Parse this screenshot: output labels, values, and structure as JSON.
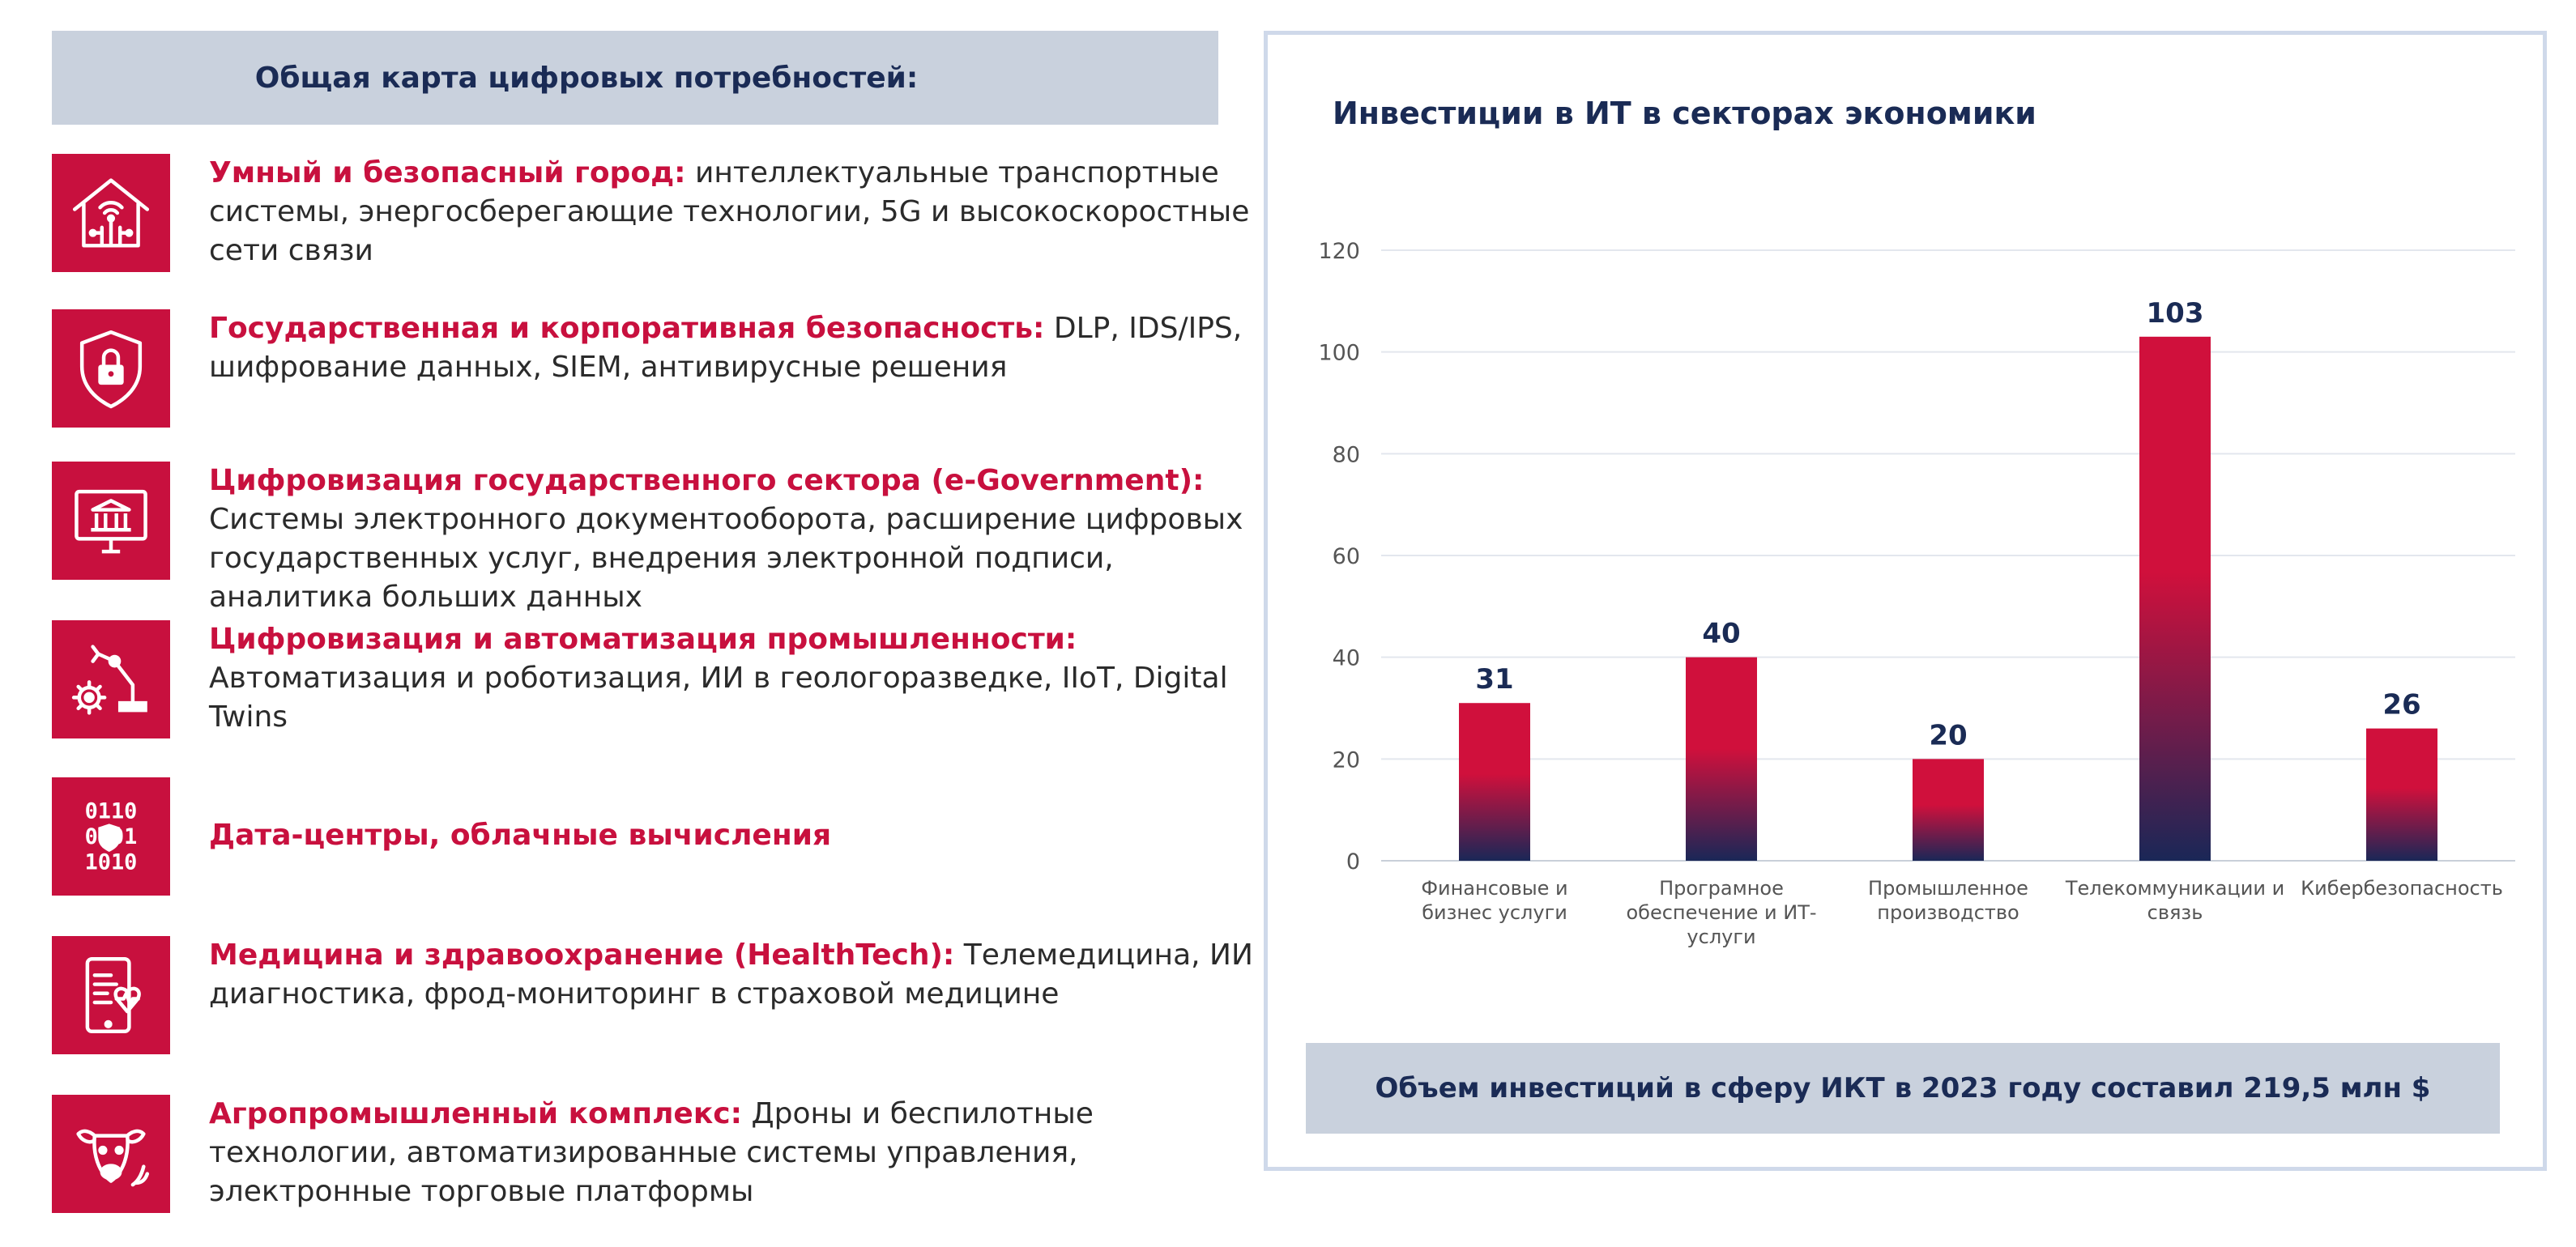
{
  "left": {
    "header": "Общая карта цифровых потребностей:",
    "items": [
      {
        "icon": "smart-home-icon",
        "title": "Умный и безопасный город:",
        "text": " интеллектуальные транспортные системы, энергосберегающие технологии, 5G и высокоскоростные сети связи"
      },
      {
        "icon": "shield-lock-icon",
        "title": "Государственная и корпоративная безопасность:",
        "text": " DLP, IDS/IPS, шифрование данных, SIEM, антивирусные решения"
      },
      {
        "icon": "government-monitor-icon",
        "title": "Цифровизация государственного сектора (e-Government):",
        "text": " Системы электронного документооборота, расширение цифровых государственных услуг, внедрения электронной подписи, аналитика больших данных"
      },
      {
        "icon": "robot-arm-icon",
        "title": "Цифровизация и автоматизация промышленности:",
        "text": " Автоматизация и роботизация, ИИ в геологоразведке, IIoT, Digital Twins"
      },
      {
        "icon": "binary-shield-icon",
        "title": "Дата-центры, облачные вычисления",
        "text": ""
      },
      {
        "icon": "tablet-heartbeat-icon",
        "title": "Медицина и здравоохранение (HealthTech):",
        "text": " Телемедицина, ИИ диагностика, фрод-мониторинг в страховой медицине"
      },
      {
        "icon": "cow-icon",
        "title": "Агропромышленный комплекс:",
        "text": " Дроны и беспилотные технологии, автоматизированные системы управления, электронные торговые платформы"
      }
    ]
  },
  "colors": {
    "accent": "#c8103e",
    "navy": "#1a2b55",
    "banner_bg": "#c9d1dd",
    "bar_top": "#d0103c",
    "bar_bottom": "#1a2757"
  },
  "chart_data": {
    "type": "bar",
    "title": "Инвестиции в ИТ в секторах экономики",
    "categories": [
      [
        "Финансовые и",
        "бизнес услуги"
      ],
      [
        "Програмное",
        "обеспечение и ИТ-",
        "услуги"
      ],
      [
        "Промышленное",
        "производство"
      ],
      [
        "Телекоммуникации и",
        "связь"
      ],
      [
        "Кибербезопасность"
      ]
    ],
    "values": [
      31,
      40,
      20,
      103,
      26
    ],
    "ylim": [
      0,
      120
    ],
    "yticks": [
      0,
      20,
      40,
      60,
      80,
      100,
      120
    ],
    "grid": true,
    "data_labels": true
  },
  "footer_banner": "Объем инвестиций в сферу ИКТ в 2023 году составил 219,5  млн $"
}
